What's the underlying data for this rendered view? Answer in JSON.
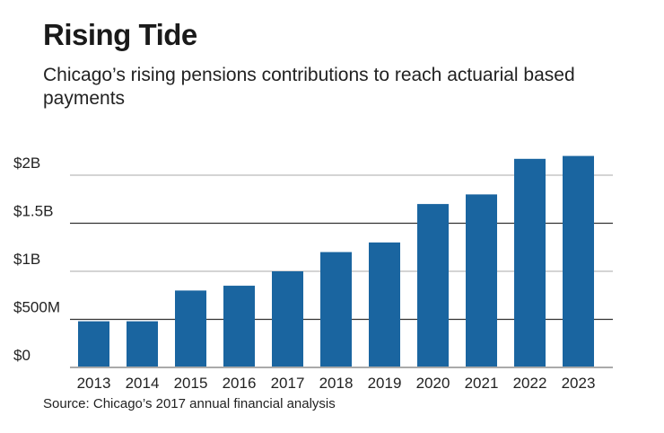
{
  "chart_data": {
    "type": "bar",
    "title": "Rising Tide",
    "subtitle": "Chicago’s rising pensions contributions to reach actuarial based payments",
    "categories": [
      "2013",
      "2014",
      "2015",
      "2016",
      "2017",
      "2018",
      "2019",
      "2020",
      "2021",
      "2022",
      "2023"
    ],
    "values": [
      0.48,
      0.48,
      0.8,
      0.85,
      1.0,
      1.2,
      1.3,
      1.7,
      1.8,
      2.17,
      2.2
    ],
    "unit": "billions of dollars",
    "yticks": [
      0,
      0.5,
      1,
      1.5,
      2
    ],
    "ytick_labels": [
      "$0",
      "$500M",
      "$1B",
      "$1.5B",
      "$2B"
    ],
    "ylim": [
      0,
      2.25
    ],
    "grid": true,
    "bar_color": "#1a65a0",
    "source": "Source: Chicago’s 2017 annual financial analysis"
  }
}
